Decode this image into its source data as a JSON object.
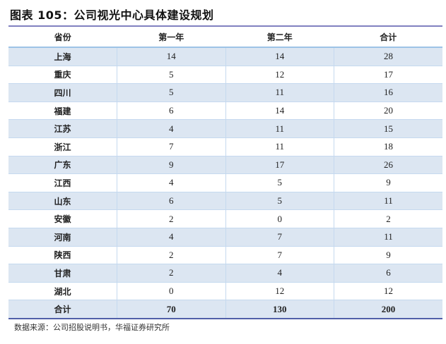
{
  "title": "图表 105：公司视光中心具体建设规划",
  "headers": [
    "省份",
    "第一年",
    "第二年",
    "合计"
  ],
  "rows": [
    [
      "上海",
      "14",
      "14",
      "28"
    ],
    [
      "重庆",
      "5",
      "12",
      "17"
    ],
    [
      "四川",
      "5",
      "11",
      "16"
    ],
    [
      "福建",
      "6",
      "14",
      "20"
    ],
    [
      "江苏",
      "4",
      "11",
      "15"
    ],
    [
      "浙江",
      "7",
      "11",
      "18"
    ],
    [
      "广东",
      "9",
      "17",
      "26"
    ],
    [
      "江西",
      "4",
      "5",
      "9"
    ],
    [
      "山东",
      "6",
      "5",
      "11"
    ],
    [
      "安徽",
      "2",
      "0",
      "2"
    ],
    [
      "河南",
      "4",
      "7",
      "11"
    ],
    [
      "陕西",
      "2",
      "7",
      "9"
    ],
    [
      "甘肃",
      "2",
      "4",
      "6"
    ],
    [
      "湖北",
      "0",
      "12",
      "12"
    ]
  ],
  "total": [
    "合计",
    "70",
    "130",
    "200"
  ],
  "source": "数据来源：公司招股说明书，华福证券研究所"
}
